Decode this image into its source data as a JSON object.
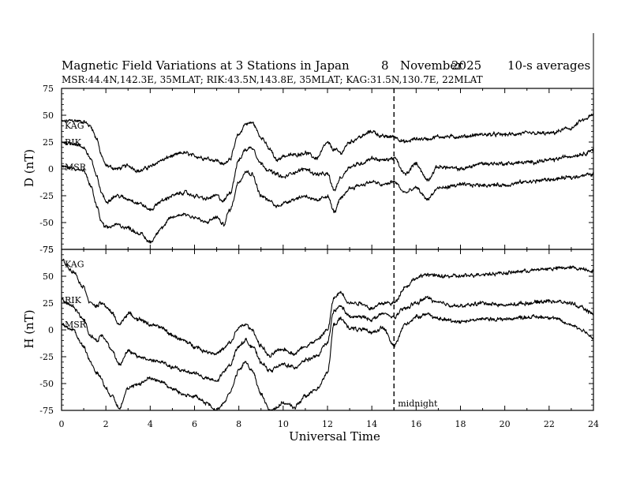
{
  "chart_data": {
    "type": "line",
    "title_parts": {
      "main": "Magnetic Field Variations at 3 Stations in Japan",
      "day": "8",
      "month": "November",
      "year": "2025",
      "resolution": "10-s averages"
    },
    "subtitle": "MSR:44.4N,142.3E, 35MLAT;  RIK:43.5N,143.8E, 35MLAT;  KAG:31.5N,130.7E, 22MLAT",
    "xlabel": "Universal Time",
    "xlim": [
      0,
      24
    ],
    "xticks": [
      "0",
      "2",
      "4",
      "6",
      "8",
      "10",
      "12",
      "14",
      "16",
      "18",
      "20",
      "22",
      "24"
    ],
    "midnight": {
      "x": 15,
      "label": "midnight"
    },
    "panels": [
      {
        "ylabel": "D (nT)",
        "ylim": [
          -75,
          75
        ],
        "yticks": [
          "75",
          "50",
          "25",
          "0",
          "-25",
          "-50",
          "-75"
        ],
        "series": [
          {
            "name": "KAG",
            "x": [
              0,
              0.5,
              1,
              1.3,
              1.6,
              1.8,
              2,
              2.5,
              3,
              3.5,
              4,
              4.5,
              5,
              5.5,
              6,
              6.5,
              7,
              7.3,
              7.6,
              8,
              8.3,
              8.6,
              9,
              9.4,
              9.7,
              10,
              10.5,
              11,
              11.5,
              12,
              12.3,
              12.6,
              13,
              13.5,
              14,
              14.5,
              15,
              15.5,
              16,
              16.5,
              17,
              18,
              19,
              20,
              21,
              22,
              23,
              23.5,
              24
            ],
            "values": [
              44,
              45,
              44,
              40,
              28,
              12,
              3,
              0,
              3,
              -2,
              2,
              8,
              12,
              15,
              12,
              10,
              8,
              4,
              10,
              32,
              42,
              43,
              30,
              18,
              8,
              12,
              13,
              15,
              10,
              24,
              18,
              15,
              25,
              30,
              35,
              30,
              30,
              25,
              28,
              28,
              30,
              30,
              32,
              32,
              33,
              33,
              38,
              45,
              50
            ]
          },
          {
            "name": "RIK",
            "x": [
              0,
              0.5,
              1,
              1.3,
              1.6,
              1.8,
              2,
              2.5,
              3,
              3.5,
              4,
              4.5,
              5,
              5.5,
              6,
              6.5,
              7,
              7.3,
              7.6,
              8,
              8.3,
              8.6,
              9,
              9.4,
              9.7,
              10,
              10.5,
              11,
              11.5,
              12,
              12.3,
              12.6,
              13,
              13.5,
              14,
              14.5,
              15,
              15.5,
              16,
              16.5,
              17,
              18,
              19,
              20,
              21,
              22,
              23,
              23.5,
              24
            ],
            "values": [
              25,
              24,
              20,
              10,
              -8,
              -22,
              -30,
              -25,
              -28,
              -32,
              -38,
              -30,
              -25,
              -22,
              -25,
              -28,
              -25,
              -30,
              -22,
              8,
              18,
              20,
              5,
              -2,
              -5,
              -8,
              -3,
              0,
              -5,
              -5,
              -20,
              -8,
              2,
              5,
              10,
              8,
              10,
              -5,
              5,
              -10,
              2,
              0,
              5,
              5,
              6,
              8,
              12,
              14,
              18
            ]
          },
          {
            "name": "MSR",
            "x": [
              0,
              0.5,
              1,
              1.3,
              1.6,
              1.8,
              2,
              2.5,
              3,
              3.5,
              4,
              4.5,
              5,
              5.5,
              6,
              6.5,
              7,
              7.3,
              7.6,
              8,
              8.3,
              8.6,
              9,
              9.4,
              9.7,
              10,
              10.5,
              11,
              11.5,
              12,
              12.3,
              12.6,
              13,
              13.5,
              14,
              14.5,
              15,
              15.5,
              16,
              16.5,
              17,
              18,
              19,
              20,
              21,
              22,
              23,
              23.5,
              24
            ],
            "values": [
              2,
              1,
              -2,
              -15,
              -35,
              -50,
              -55,
              -52,
              -55,
              -60,
              -68,
              -55,
              -45,
              -42,
              -45,
              -50,
              -45,
              -52,
              -38,
              -12,
              -2,
              -5,
              -25,
              -30,
              -35,
              -32,
              -28,
              -25,
              -30,
              -25,
              -40,
              -28,
              -18,
              -15,
              -12,
              -15,
              -12,
              -22,
              -18,
              -28,
              -18,
              -15,
              -15,
              -15,
              -12,
              -10,
              -8,
              -6,
              -5
            ]
          }
        ]
      },
      {
        "ylabel": "H (nT)",
        "ylim": [
          -75,
          75
        ],
        "yticks": [
          "75",
          "50",
          "25",
          "0",
          "-25",
          "-50",
          "-75"
        ],
        "series": [
          {
            "name": "KAG",
            "x": [
              0,
              0.5,
              1,
              1.3,
              1.6,
              1.8,
              2,
              2.3,
              2.6,
              3,
              3.5,
              4,
              4.5,
              5,
              5.5,
              6,
              6.5,
              7,
              7.3,
              7.6,
              8,
              8.3,
              8.6,
              9,
              9.4,
              9.7,
              10,
              10.5,
              11,
              11.5,
              12,
              12.3,
              12.6,
              13,
              13.5,
              14,
              14.5,
              15,
              15.5,
              16,
              16.5,
              17,
              18,
              19,
              20,
              21,
              22,
              23,
              23.5,
              24
            ],
            "values": [
              65,
              55,
              40,
              25,
              22,
              25,
              22,
              15,
              5,
              15,
              10,
              5,
              2,
              -5,
              -10,
              -15,
              -20,
              -22,
              -18,
              -12,
              2,
              5,
              0,
              -15,
              -25,
              -20,
              -18,
              -22,
              -15,
              -10,
              0,
              30,
              35,
              25,
              25,
              20,
              25,
              25,
              40,
              48,
              52,
              50,
              50,
              52,
              53,
              55,
              57,
              58,
              57,
              55
            ]
          },
          {
            "name": "RIK",
            "x": [
              0,
              0.5,
              1,
              1.3,
              1.6,
              1.8,
              2,
              2.3,
              2.6,
              3,
              3.5,
              4,
              4.5,
              5,
              5.5,
              6,
              6.5,
              7,
              7.3,
              7.6,
              8,
              8.3,
              8.6,
              9,
              9.4,
              9.7,
              10,
              10.5,
              11,
              11.5,
              12,
              12.3,
              12.6,
              13,
              13.5,
              14,
              14.5,
              15,
              15.5,
              16,
              16.5,
              17,
              18,
              19,
              20,
              21,
              22,
              23,
              23.5,
              24
            ],
            "values": [
              28,
              22,
              10,
              -5,
              -10,
              -5,
              -10,
              -20,
              -32,
              -20,
              -25,
              -28,
              -30,
              -35,
              -38,
              -40,
              -45,
              -48,
              -40,
              -32,
              -15,
              -10,
              -15,
              -30,
              -38,
              -35,
              -32,
              -35,
              -28,
              -25,
              -12,
              18,
              22,
              12,
              12,
              10,
              15,
              12,
              20,
              25,
              30,
              25,
              22,
              25,
              23,
              25,
              27,
              25,
              20,
              15
            ]
          },
          {
            "name": "MSR",
            "x": [
              0,
              0.5,
              1,
              1.3,
              1.6,
              1.8,
              2,
              2.3,
              2.6,
              3,
              3.5,
              4,
              4.5,
              5,
              5.5,
              6,
              6.5,
              7,
              7.3,
              7.6,
              8,
              8.3,
              8.6,
              9,
              9.4,
              9.7,
              10,
              10.5,
              11,
              11.5,
              12,
              12.3,
              12.6,
              13,
              13.5,
              14,
              14.5,
              15,
              15.5,
              16,
              16.5,
              17,
              18,
              19,
              20,
              21,
              22,
              23,
              23.5,
              24
            ],
            "values": [
              5,
              0,
              -15,
              -30,
              -40,
              -45,
              -55,
              -62,
              -72,
              -55,
              -50,
              -45,
              -48,
              -55,
              -60,
              -62,
              -68,
              -75,
              -68,
              -58,
              -38,
              -30,
              -38,
              -60,
              -75,
              -72,
              -68,
              -72,
              -62,
              -55,
              -40,
              5,
              10,
              2,
              0,
              -2,
              2,
              -15,
              5,
              12,
              15,
              10,
              8,
              10,
              10,
              12,
              12,
              5,
              0,
              -8
            ]
          }
        ]
      }
    ]
  }
}
